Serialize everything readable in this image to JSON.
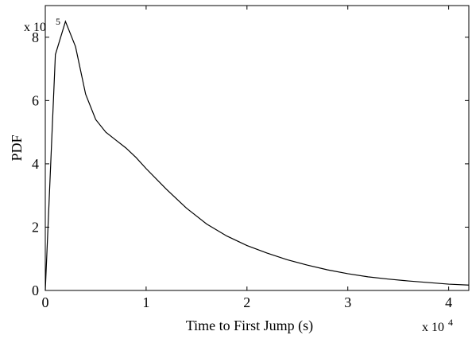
{
  "chart_data": {
    "type": "line",
    "xlabel": "Time to First Jump (s)",
    "ylabel": "PDF",
    "x_multiplier": {
      "base": "x 10",
      "exponent": "4"
    },
    "y_multiplier": {
      "base": "x 10",
      "exponent": "5"
    },
    "xlim": [
      0,
      4.2
    ],
    "ylim": [
      0,
      9
    ],
    "x_ticks": [
      {
        "value": 0,
        "label": "0"
      },
      {
        "value": 1,
        "label": "1"
      },
      {
        "value": 2,
        "label": "2"
      },
      {
        "value": 3,
        "label": "3"
      },
      {
        "value": 4,
        "label": "4"
      }
    ],
    "y_ticks": [
      {
        "value": 0,
        "label": "0"
      },
      {
        "value": 2,
        "label": "2"
      },
      {
        "value": 4,
        "label": "4"
      },
      {
        "value": 6,
        "label": "6"
      },
      {
        "value": 8,
        "label": "8"
      }
    ],
    "grid": false,
    "legend": "none",
    "line_color": "#000000",
    "series": [
      {
        "x": [
          0,
          0.1,
          0.2,
          0.3,
          0.4,
          0.5,
          0.6,
          0.7,
          0.8,
          0.9,
          1.0,
          1.2,
          1.4,
          1.6,
          1.8,
          2.0,
          2.2,
          2.4,
          2.6,
          2.8,
          3.0,
          3.2,
          3.4,
          3.6,
          3.8,
          4.0,
          4.2
        ],
        "y": [
          0,
          7.45,
          8.5,
          7.7,
          6.2,
          5.4,
          5.0,
          4.75,
          4.5,
          4.2,
          3.85,
          3.2,
          2.6,
          2.1,
          1.72,
          1.42,
          1.18,
          0.97,
          0.8,
          0.65,
          0.53,
          0.43,
          0.36,
          0.3,
          0.25,
          0.2,
          0.17
        ]
      }
    ]
  }
}
